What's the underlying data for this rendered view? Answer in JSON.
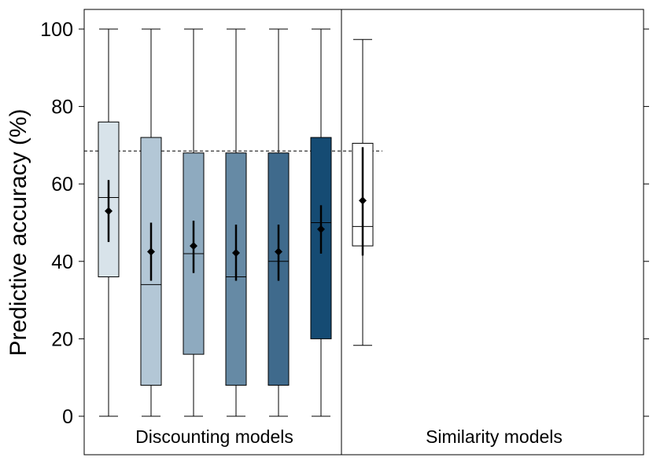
{
  "chart_data": {
    "type": "box",
    "ylabel": "Predictive accuracy (%)",
    "ylim": [
      0,
      100
    ],
    "yticks": [
      0,
      20,
      40,
      60,
      80,
      100
    ],
    "reference_line": 68.5,
    "panels": [
      {
        "label": "Discounting models"
      },
      {
        "label": "Similarity models"
      }
    ],
    "series": [
      {
        "panel": 0,
        "color": "#d8e3ea",
        "whisker_low": 0,
        "q1": 36,
        "median": 56.5,
        "q3": 76,
        "whisker_high": 100,
        "mean": 53,
        "ci_low": 45,
        "ci_high": 61
      },
      {
        "panel": 0,
        "color": "#b3c7d6",
        "whisker_low": 0,
        "q1": 8,
        "median": 34,
        "q3": 72,
        "whisker_high": 100,
        "mean": 42.5,
        "ci_low": 35,
        "ci_high": 50
      },
      {
        "panel": 0,
        "color": "#8eaabf",
        "whisker_low": 0,
        "q1": 16,
        "median": 42,
        "q3": 68,
        "whisker_high": 100,
        "mean": 44,
        "ci_low": 37,
        "ci_high": 50.5
      },
      {
        "panel": 0,
        "color": "#668aa5",
        "whisker_low": 0,
        "q1": 8,
        "median": 36,
        "q3": 68,
        "whisker_high": 100,
        "mean": 42.2,
        "ci_low": 35,
        "ci_high": 49.5
      },
      {
        "panel": 0,
        "color": "#3f6a8c",
        "whisker_low": 0,
        "q1": 8,
        "median": 40,
        "q3": 68,
        "whisker_high": 100,
        "mean": 42.5,
        "ci_low": 35,
        "ci_high": 49.5
      },
      {
        "panel": 0,
        "color": "#154b73",
        "whisker_low": 0,
        "q1": 20,
        "median": 50,
        "q3": 72,
        "whisker_high": 100,
        "mean": 48.3,
        "ci_low": 42,
        "ci_high": 54.5
      },
      {
        "panel": 1,
        "color": "#ffffff",
        "whisker_low": 18.3,
        "q1": 44,
        "median": 49,
        "q3": 70.5,
        "whisker_high": 97.3,
        "mean": 55.7,
        "ci_low": 41.5,
        "ci_high": 69.5
      }
    ]
  }
}
